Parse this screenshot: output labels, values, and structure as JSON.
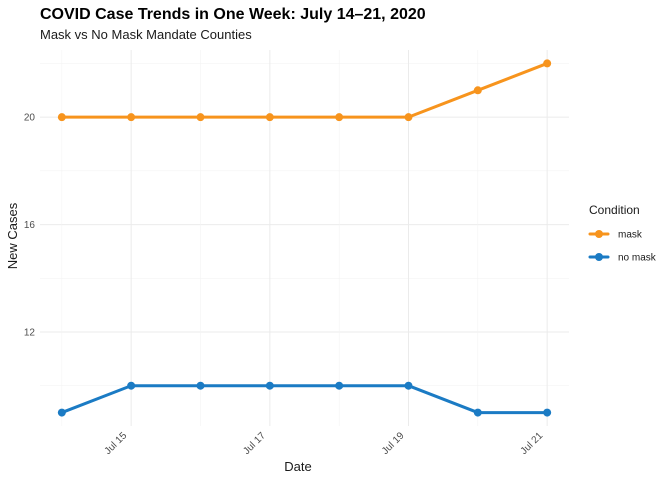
{
  "chart_data": {
    "type": "line",
    "title": "COVID Case Trends in One Week: July 14–21, 2020",
    "subtitle": "Mask vs No Mask Mandate Counties",
    "xlabel": "Date",
    "ylabel": "New Cases",
    "x": [
      "2020-07-14",
      "2020-07-15",
      "2020-07-16",
      "2020-07-17",
      "2020-07-18",
      "2020-07-19",
      "2020-07-20",
      "2020-07-21"
    ],
    "x_ticks": [
      {
        "date": "2020-07-15",
        "label": "Jul 15"
      },
      {
        "date": "2020-07-17",
        "label": "Jul 17"
      },
      {
        "date": "2020-07-19",
        "label": "Jul 19"
      },
      {
        "date": "2020-07-21",
        "label": "Jul 21"
      }
    ],
    "y_ticks": [
      12,
      16,
      20
    ],
    "ylim": [
      8.5,
      22.5
    ],
    "xlim": [
      "2020-07-14",
      "2020-07-21"
    ],
    "grid": true,
    "legend": {
      "title": "Condition",
      "position": "right"
    },
    "series": [
      {
        "name": "mask",
        "color": "#f7941d",
        "values": [
          20,
          20,
          20,
          20,
          20,
          20,
          21,
          22
        ]
      },
      {
        "name": "no mask",
        "color": "#1b7bc4",
        "values": [
          9,
          10,
          10,
          10,
          10,
          10,
          9,
          9
        ]
      }
    ]
  }
}
